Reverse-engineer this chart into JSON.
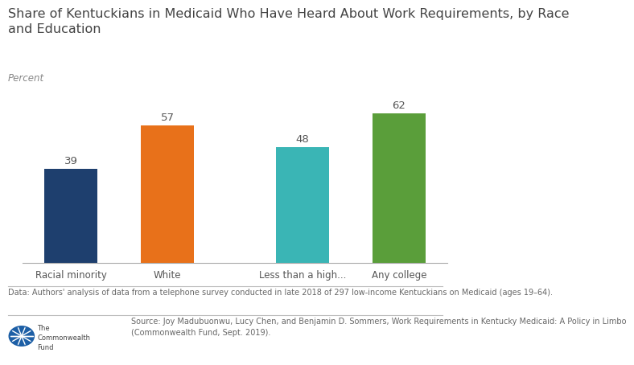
{
  "title": "Share of Kentuckians in Medicaid Who Have Heard About Work Requirements, by Race\nand Education",
  "ylabel": "Percent",
  "categories": [
    "Racial minority",
    "White",
    "Less than a high...",
    "Any college"
  ],
  "values": [
    39,
    57,
    48,
    62
  ],
  "bar_colors": [
    "#1e3f6e",
    "#e8711a",
    "#3ab5b5",
    "#5a9e3a"
  ],
  "value_labels": [
    "39",
    "57",
    "48",
    "62"
  ],
  "ylim": [
    0,
    75
  ],
  "footnote": "Data: Authors' analysis of data from a telephone survey conducted in late 2018 of 297 low-income Kentuckians on Medicaid (ages 19–64).",
  "source_text": "Source: Joy Madubuonwu, Lucy Chen, and Benjamin D. Sommers, Work Requirements in Kentucky Medicaid: A Policy in Limbo\n(Commonwealth Fund, Sept. 2019).",
  "background_color": "#ffffff",
  "title_fontsize": 11.5,
  "ylabel_fontsize": 8.5,
  "tick_fontsize": 8.5,
  "value_fontsize": 9.5,
  "footnote_fontsize": 7,
  "source_fontsize": 7
}
